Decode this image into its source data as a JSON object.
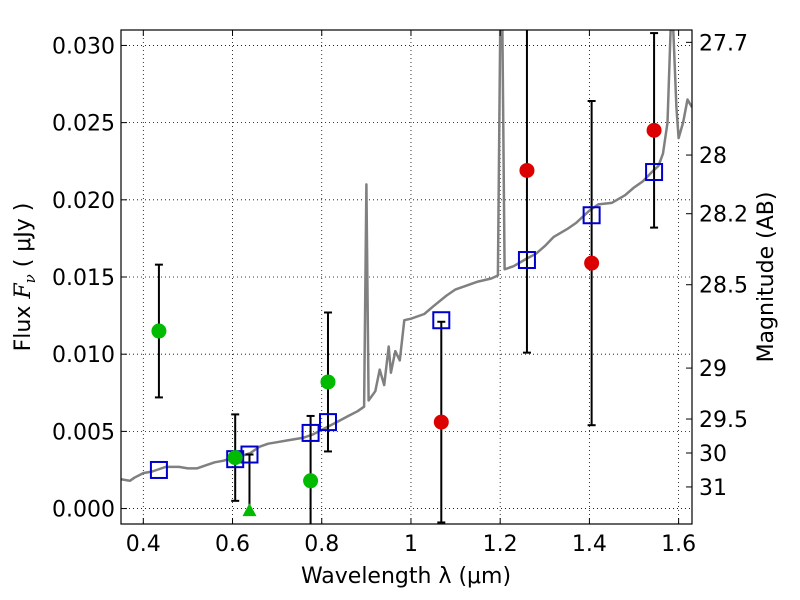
{
  "chart_data": {
    "type": "scatter",
    "title": "",
    "xlabel": "Wavelength  λ (μm)",
    "ylabel": "Flux  Fν  ( μJy )",
    "ylabel_parts": {
      "prefix": "Flux  ",
      "symbol": "F",
      "subscript": "ν",
      "suffix": "  ( μJy )"
    },
    "y2label": "Magnitude (AB)",
    "xlim": [
      0.35,
      1.63
    ],
    "ylim": [
      -0.001,
      0.031
    ],
    "grid": true,
    "x_ticks": [
      0.4,
      0.6,
      0.8,
      1,
      1.2,
      1.4,
      1.6
    ],
    "x_tick_labels": [
      "0.4",
      "0.6",
      "0.8",
      "1",
      "1.2",
      "1.4",
      "1.6"
    ],
    "y_ticks": [
      0,
      0.005,
      0.01,
      0.015,
      0.02,
      0.025,
      0.03
    ],
    "y_tick_labels": [
      "0.000",
      "0.005",
      "0.010",
      "0.015",
      "0.020",
      "0.025",
      "0.030"
    ],
    "mag_ticks": [
      {
        "label": "27.7",
        "flux": 0.0302
      },
      {
        "label": "28",
        "flux": 0.0229
      },
      {
        "label": "28.2",
        "flux": 0.0191
      },
      {
        "label": "28.5",
        "flux": 0.0145
      },
      {
        "label": "29",
        "flux": 0.0091
      },
      {
        "label": "29.5",
        "flux": 0.0058
      },
      {
        "label": "30",
        "flux": 0.0036
      },
      {
        "label": "31",
        "flux": 0.0014
      }
    ],
    "sed_model": {
      "color": "#808080",
      "points": [
        [
          0.35,
          0.0019
        ],
        [
          0.37,
          0.0018
        ],
        [
          0.38,
          0.002
        ],
        [
          0.4,
          0.0023
        ],
        [
          0.42,
          0.0024
        ],
        [
          0.45,
          0.0027
        ],
        [
          0.48,
          0.0027
        ],
        [
          0.5,
          0.0026
        ],
        [
          0.52,
          0.0026
        ],
        [
          0.54,
          0.0028
        ],
        [
          0.56,
          0.003
        ],
        [
          0.58,
          0.0031
        ],
        [
          0.6,
          0.0033
        ],
        [
          0.62,
          0.0034
        ],
        [
          0.64,
          0.0036
        ],
        [
          0.66,
          0.004
        ],
        [
          0.68,
          0.0042
        ],
        [
          0.7,
          0.0043
        ],
        [
          0.72,
          0.0044
        ],
        [
          0.74,
          0.0045
        ],
        [
          0.76,
          0.0046
        ],
        [
          0.78,
          0.0048
        ],
        [
          0.8,
          0.0051
        ],
        [
          0.82,
          0.0054
        ],
        [
          0.84,
          0.0057
        ],
        [
          0.86,
          0.006
        ],
        [
          0.88,
          0.0063
        ],
        [
          0.895,
          0.0066
        ],
        [
          0.9,
          0.021
        ],
        [
          0.905,
          0.007
        ],
        [
          0.92,
          0.0076
        ],
        [
          0.93,
          0.009
        ],
        [
          0.94,
          0.008
        ],
        [
          0.95,
          0.0105
        ],
        [
          0.955,
          0.0088
        ],
        [
          0.965,
          0.0102
        ],
        [
          0.975,
          0.0096
        ],
        [
          0.985,
          0.0122
        ],
        [
          1.0,
          0.0123
        ],
        [
          1.03,
          0.0126
        ],
        [
          1.05,
          0.0131
        ],
        [
          1.08,
          0.0138
        ],
        [
          1.1,
          0.0142
        ],
        [
          1.12,
          0.0144
        ],
        [
          1.15,
          0.0147
        ],
        [
          1.18,
          0.0149
        ],
        [
          1.195,
          0.0151
        ],
        [
          1.2,
          0.031
        ],
        [
          1.205,
          0.031
        ],
        [
          1.21,
          0.0155
        ],
        [
          1.23,
          0.0157
        ],
        [
          1.26,
          0.0162
        ],
        [
          1.28,
          0.0165
        ],
        [
          1.3,
          0.017
        ],
        [
          1.32,
          0.0176
        ],
        [
          1.35,
          0.0181
        ],
        [
          1.37,
          0.0185
        ],
        [
          1.4,
          0.0193
        ],
        [
          1.42,
          0.0197
        ],
        [
          1.45,
          0.0198
        ],
        [
          1.48,
          0.0203
        ],
        [
          1.5,
          0.0208
        ],
        [
          1.52,
          0.0212
        ],
        [
          1.54,
          0.0218
        ],
        [
          1.555,
          0.0222
        ],
        [
          1.565,
          0.023
        ],
        [
          1.575,
          0.025
        ],
        [
          1.582,
          0.031
        ],
        [
          1.588,
          0.031
        ],
        [
          1.595,
          0.026
        ],
        [
          1.6,
          0.024
        ],
        [
          1.61,
          0.025
        ],
        [
          1.62,
          0.0265
        ],
        [
          1.63,
          0.026
        ]
      ]
    },
    "model_fluxes": {
      "marker": "open-square",
      "color": "#0000cc",
      "points": [
        [
          0.435,
          0.0025
        ],
        [
          0.606,
          0.0032
        ],
        [
          0.638,
          0.0035
        ],
        [
          0.775,
          0.0049
        ],
        [
          0.814,
          0.0056
        ],
        [
          1.068,
          0.0122
        ],
        [
          1.26,
          0.0161
        ],
        [
          1.405,
          0.019
        ],
        [
          1.545,
          0.0218
        ]
      ]
    },
    "observed_green": {
      "marker": "circle",
      "color": "#00bb00",
      "points": [
        {
          "x": 0.435,
          "y": 0.0115,
          "err": 0.0043
        },
        {
          "x": 0.606,
          "y": 0.0033,
          "err": 0.0028
        },
        {
          "x": 0.775,
          "y": 0.0018,
          "err": 0.0042
        },
        {
          "x": 0.814,
          "y": 0.0082,
          "err": 0.0045
        }
      ]
    },
    "upper_limit": {
      "marker": "triangle",
      "color": "#00bb00",
      "point": {
        "x": 0.638,
        "y": -0.0001,
        "err_top": 0.0035
      }
    },
    "observed_red": {
      "marker": "circle",
      "color": "#dd0000",
      "points": [
        {
          "x": 1.068,
          "y": 0.0056,
          "err": 0.0065
        },
        {
          "x": 1.26,
          "y": 0.0219,
          "err": 0.0118
        },
        {
          "x": 1.405,
          "y": 0.0159,
          "err": 0.0105
        },
        {
          "x": 1.545,
          "y": 0.0245,
          "err": 0.0063
        }
      ]
    }
  }
}
